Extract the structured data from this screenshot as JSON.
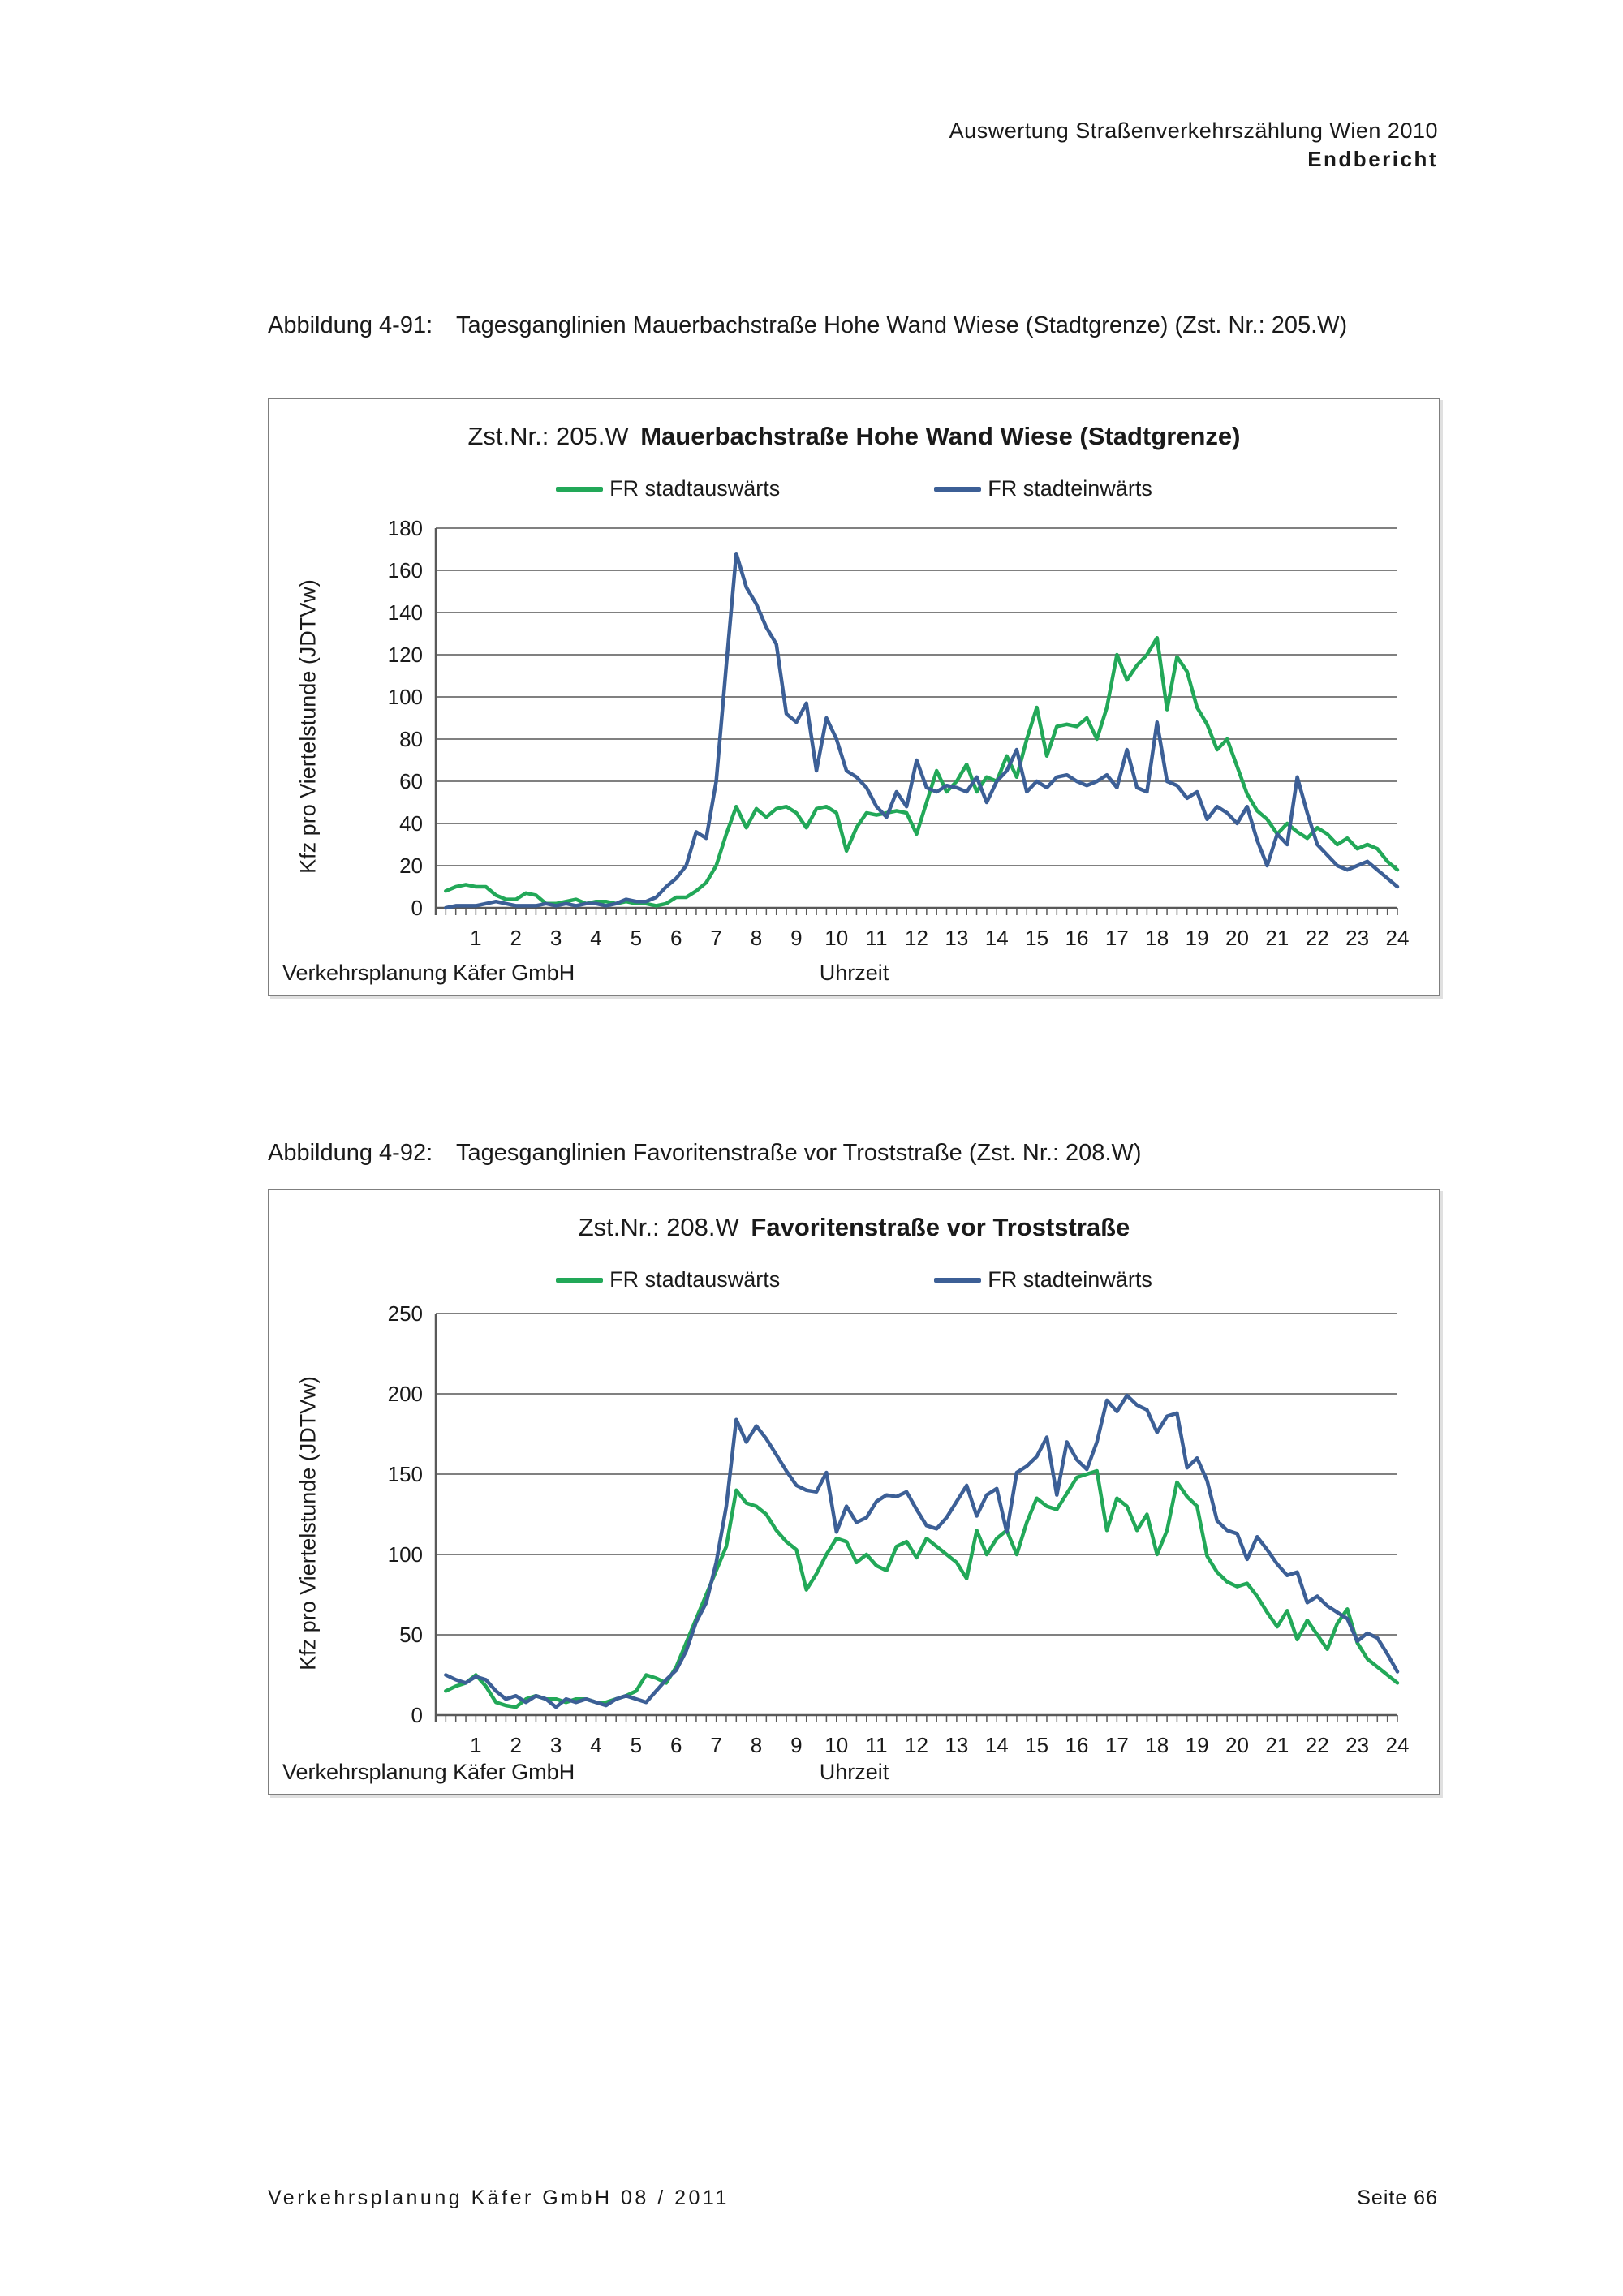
{
  "page": {
    "header": {
      "line1": "Auswertung Straßenverkehrszählung Wien 2010",
      "line2": "Endbericht"
    },
    "footer": {
      "left": "Verkehrsplanung Käfer GmbH  08 / 2011",
      "right": "Seite 66"
    }
  },
  "figures": [
    {
      "caption_label": "Abbildung 4-91:",
      "caption_text": "Tagesganglinien Mauerbachstraße Hohe Wand Wiese (Stadtgrenze) (Zst. Nr.: 205.W)"
    },
    {
      "caption_label": "Abbildung 4-92:",
      "caption_text": "Tagesganglinien Favoritenstraße vor Troststraße (Zst. Nr.: 208.W)"
    }
  ],
  "chart_data": [
    {
      "type": "line",
      "title_prefix": "Zst.Nr.: 205.W",
      "title_main": "Mauerbachstraße Hohe Wand Wiese (Stadtgrenze)",
      "ylabel": "Kfz pro Viertelstunde (JDTVw)",
      "xlabel": "Uhrzeit",
      "source": "Verkehrsplanung Käfer GmbH",
      "ylim": [
        0,
        180
      ],
      "ytick_step": 20,
      "xlim_hours": [
        0,
        24
      ],
      "xtick_labels": [
        1,
        2,
        3,
        4,
        5,
        6,
        7,
        8,
        9,
        10,
        11,
        12,
        13,
        14,
        15,
        16,
        17,
        18,
        19,
        20,
        21,
        22,
        23,
        24
      ],
      "x_resolution": "quarter-hour",
      "grid": "horizontal",
      "legend_position": "top",
      "series": [
        {
          "name": "FR stadtauswärts",
          "color": "#22a858",
          "values": [
            8,
            10,
            11,
            10,
            10,
            6,
            4,
            4,
            7,
            6,
            2,
            2,
            3,
            4,
            2,
            3,
            3,
            2,
            3,
            2,
            2,
            1,
            2,
            5,
            5,
            8,
            12,
            20,
            35,
            48,
            38,
            47,
            43,
            47,
            48,
            45,
            38,
            47,
            48,
            45,
            27,
            38,
            45,
            44,
            45,
            46,
            45,
            35,
            50,
            65,
            55,
            60,
            68,
            55,
            62,
            60,
            72,
            62,
            80,
            95,
            72,
            86,
            87,
            86,
            90,
            80,
            95,
            120,
            108,
            115,
            120,
            128,
            94,
            119,
            112,
            95,
            87,
            75,
            80,
            67,
            54,
            46,
            42,
            35,
            40,
            36,
            33,
            38,
            35,
            30,
            33,
            28,
            30,
            28,
            22,
            18
          ]
        },
        {
          "name": "FR stadteinwärts",
          "color": "#3c5f96",
          "values": [
            0,
            1,
            1,
            1,
            2,
            3,
            2,
            1,
            1,
            1,
            2,
            1,
            2,
            1,
            2,
            2,
            1,
            2,
            4,
            3,
            3,
            5,
            10,
            14,
            20,
            36,
            33,
            60,
            115,
            168,
            152,
            144,
            133,
            125,
            92,
            88,
            97,
            65,
            90,
            80,
            65,
            62,
            57,
            48,
            43,
            55,
            48,
            70,
            57,
            55,
            58,
            57,
            55,
            62,
            50,
            60,
            65,
            75,
            55,
            60,
            57,
            62,
            63,
            60,
            58,
            60,
            63,
            57,
            75,
            57,
            55,
            88,
            60,
            58,
            52,
            55,
            42,
            48,
            45,
            40,
            48,
            32,
            20,
            35,
            30,
            62,
            45,
            30,
            25,
            20,
            18,
            20,
            22,
            18,
            14,
            10
          ]
        }
      ]
    },
    {
      "type": "line",
      "title_prefix": "Zst.Nr.: 208.W",
      "title_main": "Favoritenstraße vor Troststraße",
      "ylabel": "Kfz pro Viertelstunde (JDTVw)",
      "xlabel": "Uhrzeit",
      "source": "Verkehrsplanung Käfer GmbH",
      "ylim": [
        0,
        250
      ],
      "ytick_step": 50,
      "xlim_hours": [
        0,
        24
      ],
      "xtick_labels": [
        1,
        2,
        3,
        4,
        5,
        6,
        7,
        8,
        9,
        10,
        11,
        12,
        13,
        14,
        15,
        16,
        17,
        18,
        19,
        20,
        21,
        22,
        23,
        24
      ],
      "x_resolution": "quarter-hour",
      "grid": "horizontal",
      "legend_position": "top",
      "series": [
        {
          "name": "FR stadtauswärts",
          "color": "#22a858",
          "values": [
            15,
            18,
            20,
            25,
            18,
            8,
            6,
            5,
            10,
            12,
            10,
            10,
            8,
            10,
            10,
            8,
            8,
            10,
            12,
            15,
            25,
            23,
            20,
            30,
            45,
            60,
            75,
            90,
            105,
            140,
            132,
            130,
            125,
            115,
            108,
            103,
            78,
            88,
            100,
            110,
            108,
            95,
            100,
            93,
            90,
            105,
            108,
            98,
            110,
            105,
            100,
            95,
            85,
            115,
            100,
            110,
            115,
            100,
            120,
            135,
            130,
            128,
            138,
            148,
            150,
            152,
            115,
            135,
            130,
            115,
            125,
            100,
            115,
            145,
            136,
            130,
            99,
            89,
            83,
            80,
            82,
            74,
            64,
            55,
            65,
            47,
            59,
            50,
            41,
            57,
            66,
            45,
            35,
            30,
            25,
            20
          ]
        },
        {
          "name": "FR stadteinwärts",
          "color": "#3c5f96",
          "values": [
            25,
            22,
            20,
            24,
            22,
            15,
            10,
            12,
            8,
            12,
            10,
            5,
            10,
            8,
            10,
            8,
            6,
            10,
            12,
            10,
            8,
            15,
            22,
            28,
            40,
            58,
            70,
            95,
            130,
            184,
            170,
            180,
            172,
            162,
            152,
            143,
            140,
            139,
            151,
            114,
            130,
            120,
            123,
            133,
            137,
            136,
            139,
            128,
            118,
            116,
            123,
            133,
            143,
            124,
            137,
            141,
            114,
            151,
            155,
            161,
            173,
            137,
            170,
            159,
            153,
            170,
            196,
            189,
            199,
            193,
            190,
            176,
            186,
            188,
            154,
            160,
            146,
            121,
            115,
            113,
            97,
            111,
            103,
            94,
            87,
            89,
            70,
            74,
            68,
            64,
            60,
            46,
            51,
            48,
            38,
            27
          ]
        }
      ]
    }
  ]
}
